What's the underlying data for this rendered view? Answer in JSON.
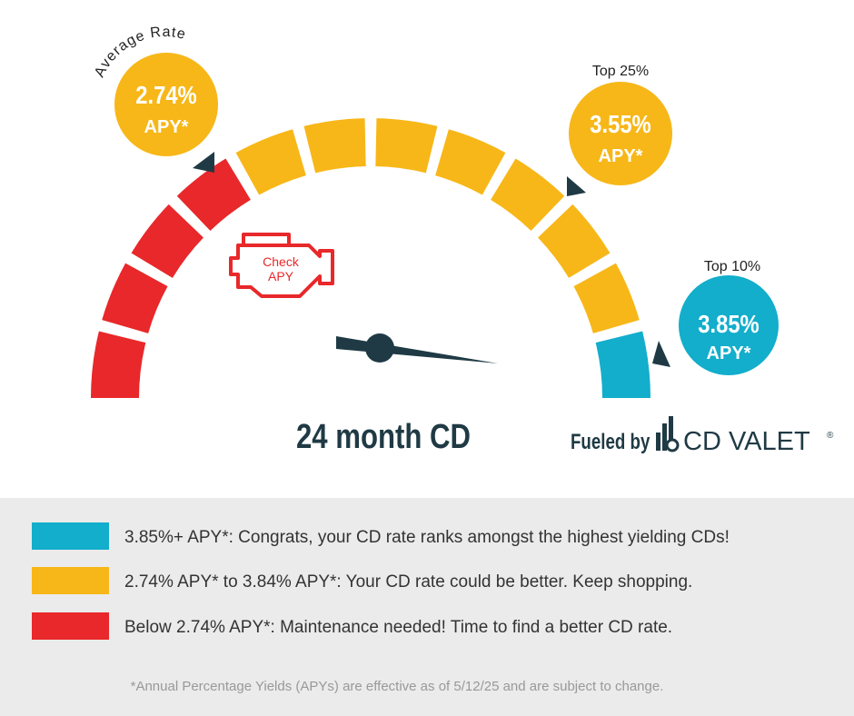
{
  "badges": [
    {
      "caption": "Average Rate",
      "rate": "2.74%",
      "unit": "APY*"
    },
    {
      "caption": "Top 25%",
      "rate": "3.55%",
      "unit": "APY*"
    },
    {
      "caption": "Top 10%",
      "rate": "3.85%",
      "unit": "APY*"
    }
  ],
  "engine_light": {
    "line1": "Check",
    "line2": "APY"
  },
  "gauge_label": "24 month CD",
  "brand": {
    "prefix": "Fueled by",
    "name": "CD VALET",
    "mark": "®"
  },
  "legend": [
    "3.85%+ APY*: Congrats, your CD rate ranks amongst the highest yielding CDs!",
    "2.74% APY* to 3.84% APY*: Your CD rate could be better. Keep shopping.",
    "Below 2.74% APY*: Maintenance needed! Time to find a better CD rate."
  ],
  "footnote": "*Annual Percentage Yields (APYs) are effective as of 5/12/25 and are subject to change."
}
